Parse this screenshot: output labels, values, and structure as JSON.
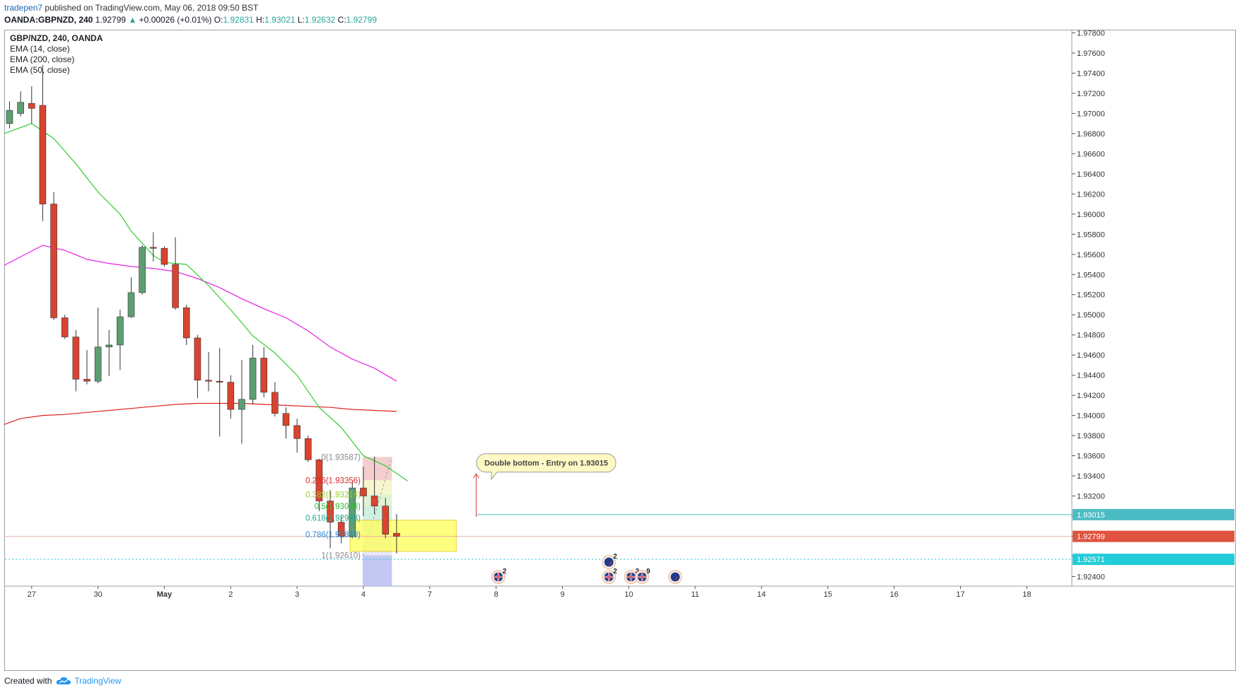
{
  "header": {
    "author": "tradepen7",
    "published": "published on TradingView.com, May 06, 2018 09:50 BST"
  },
  "quote": {
    "symbol": "OANDA:GBPNZD, 240",
    "last": "1.92799",
    "change": "+0.00026 (+0.01%)",
    "o_label": "O:",
    "o": "1.92831",
    "h_label": "H:",
    "h": "1.93021",
    "l_label": "L:",
    "l": "1.92632",
    "c_label": "C:",
    "c": "1.92799"
  },
  "legend": {
    "symbol": "GBP/NZD, 240, OANDA",
    "ema14": "EMA (14, close)",
    "ema200": "EMA (200, close)",
    "ema50": "EMA (50, close)"
  },
  "footer": {
    "created_with": "Created with",
    "brand": "TradingView"
  },
  "colors": {
    "up": "#5d9e72",
    "down": "#d9432f",
    "ema14": "#33cc33",
    "ema50": "#e61ee6",
    "ema200": "#e02020",
    "entry": "#4cbcc4",
    "support": "#22ccd8",
    "last": "#e0533f"
  },
  "chart_data": {
    "type": "candlestick",
    "ylim": [
      1.923,
      1.979
    ],
    "y_ticks": [
      "1.97800",
      "1.97600",
      "1.97400",
      "1.97200",
      "1.97000",
      "1.96800",
      "1.96600",
      "1.96400",
      "1.96200",
      "1.96000",
      "1.95800",
      "1.95600",
      "1.95400",
      "1.95200",
      "1.95000",
      "1.94800",
      "1.94600",
      "1.94400",
      "1.94200",
      "1.94000",
      "1.93800",
      "1.93600",
      "1.93400",
      "1.93200",
      "1.93000",
      "1.92800",
      "1.92600",
      "1.92400"
    ],
    "x_ticks": [
      {
        "label": "27",
        "bar": 2
      },
      {
        "label": "30",
        "bar": 8
      },
      {
        "label": "May",
        "bar": 14
      },
      {
        "label": "2",
        "bar": 20
      },
      {
        "label": "3",
        "bar": 26
      },
      {
        "label": "4",
        "bar": 32
      },
      {
        "label": "7",
        "bar": 38
      },
      {
        "label": "8",
        "bar": 44
      },
      {
        "label": "9",
        "bar": 50
      },
      {
        "label": "10",
        "bar": 56
      },
      {
        "label": "11",
        "bar": 62
      },
      {
        "label": "14",
        "bar": 68
      },
      {
        "label": "15",
        "bar": 74
      },
      {
        "label": "16",
        "bar": 80
      },
      {
        "label": "17",
        "bar": 86
      },
      {
        "label": "18",
        "bar": 92
      }
    ],
    "candles": [
      [
        1.969,
        1.9703,
        1.9685,
        1.9712
      ],
      [
        1.97,
        1.9711,
        1.9697,
        1.9722
      ],
      [
        1.971,
        1.9705,
        1.969,
        1.9727
      ],
      [
        1.9708,
        1.961,
        1.9593,
        1.9748
      ],
      [
        1.961,
        1.9497,
        1.9495,
        1.9622
      ],
      [
        1.9497,
        1.9478,
        1.9476,
        1.95
      ],
      [
        1.9478,
        1.9436,
        1.9424,
        1.9485
      ],
      [
        1.9436,
        1.9434,
        1.9431,
        1.9465
      ],
      [
        1.9434,
        1.9468,
        1.9432,
        1.9507
      ],
      [
        1.9468,
        1.947,
        1.9439,
        1.9485
      ],
      [
        1.947,
        1.9498,
        1.9445,
        1.9505
      ],
      [
        1.9498,
        1.9522,
        1.9497,
        1.9537
      ],
      [
        1.9522,
        1.9567,
        1.952,
        1.9569
      ],
      [
        1.9567,
        1.9566,
        1.9553,
        1.9582
      ],
      [
        1.9566,
        1.955,
        1.9548,
        1.9568
      ],
      [
        1.955,
        1.9507,
        1.9505,
        1.9577
      ],
      [
        1.9507,
        1.9477,
        1.947,
        1.951
      ],
      [
        1.9477,
        1.9435,
        1.9417,
        1.948
      ],
      [
        1.9435,
        1.9434,
        1.9424,
        1.9463
      ],
      [
        1.9434,
        1.9433,
        1.9379,
        1.9467
      ],
      [
        1.9433,
        1.9406,
        1.9397,
        1.944
      ],
      [
        1.9406,
        1.9416,
        1.9372,
        1.9455
      ],
      [
        1.9416,
        1.9457,
        1.9411,
        1.947
      ],
      [
        1.9457,
        1.9423,
        1.9418,
        1.9468
      ],
      [
        1.9423,
        1.9402,
        1.9399,
        1.9433
      ],
      [
        1.9402,
        1.939,
        1.9377,
        1.9408
      ],
      [
        1.939,
        1.9377,
        1.9363,
        1.9397
      ],
      [
        1.9377,
        1.9356,
        1.9354,
        1.938
      ],
      [
        1.9356,
        1.9315,
        1.9305,
        1.9357
      ],
      [
        1.9315,
        1.9294,
        1.9268,
        1.9326
      ],
      [
        1.9294,
        1.928,
        1.9273,
        1.93
      ],
      [
        1.928,
        1.9328,
        1.9278,
        1.9335
      ],
      [
        1.9328,
        1.932,
        1.93,
        1.9349
      ],
      [
        1.932,
        1.931,
        1.9302,
        1.9359
      ],
      [
        1.931,
        1.9282,
        1.9278,
        1.9318
      ],
      [
        1.9283,
        1.928,
        1.9263,
        1.9302
      ]
    ],
    "ema14": [
      [
        -0.5,
        1.968
      ],
      [
        2,
        1.969
      ],
      [
        4,
        1.9675
      ],
      [
        6,
        1.965
      ],
      [
        8,
        1.9622
      ],
      [
        10,
        1.96
      ],
      [
        11,
        1.9583
      ],
      [
        13,
        1.9559
      ],
      [
        14,
        1.9552
      ],
      [
        16,
        1.955
      ],
      [
        18,
        1.9529
      ],
      [
        20,
        1.9505
      ],
      [
        22,
        1.9479
      ],
      [
        24,
        1.9462
      ],
      [
        26,
        1.944
      ],
      [
        28,
        1.9408
      ],
      [
        30,
        1.9388
      ],
      [
        32,
        1.936
      ],
      [
        34,
        1.935
      ],
      [
        36,
        1.9335
      ]
    ],
    "ema50": [
      [
        -0.5,
        1.9549
      ],
      [
        3,
        1.9569
      ],
      [
        5,
        1.9564
      ],
      [
        7,
        1.9555
      ],
      [
        9,
        1.9551
      ],
      [
        11,
        1.9548
      ],
      [
        13,
        1.9546
      ],
      [
        15,
        1.9543
      ],
      [
        17,
        1.9536
      ],
      [
        19,
        1.9527
      ],
      [
        21,
        1.9516
      ],
      [
        23,
        1.9506
      ],
      [
        25,
        1.9497
      ],
      [
        27,
        1.9484
      ],
      [
        29,
        1.9468
      ],
      [
        31,
        1.9456
      ],
      [
        33,
        1.9447
      ],
      [
        35,
        1.9434
      ]
    ],
    "ema200": [
      [
        -0.5,
        1.9391
      ],
      [
        1,
        1.9397
      ],
      [
        3,
        1.94
      ],
      [
        5,
        1.9401
      ],
      [
        7,
        1.9403
      ],
      [
        9,
        1.9405
      ],
      [
        11,
        1.9407
      ],
      [
        13,
        1.9409
      ],
      [
        15,
        1.9411
      ],
      [
        17,
        1.9412
      ],
      [
        19,
        1.9412
      ],
      [
        21,
        1.9412
      ],
      [
        23,
        1.9411
      ],
      [
        25,
        1.941
      ],
      [
        27,
        1.9409
      ],
      [
        29,
        1.9408
      ],
      [
        31,
        1.9406
      ],
      [
        33,
        1.9405
      ],
      [
        35,
        1.9404
      ]
    ],
    "fib": {
      "levels": [
        {
          "label": "0(1.93587)",
          "value": 1.93587,
          "color": "#888888"
        },
        {
          "label": "0.236(1.93356)",
          "value": 1.93356,
          "color": "#d92a2a"
        },
        {
          "label": "0.382(1.93214)",
          "value": 1.93214,
          "color": "#9acd32"
        },
        {
          "label": "0.5(1.93098)",
          "value": 1.93098,
          "color": "#33bb33"
        },
        {
          "label": "0.618(1.92983)",
          "value": 1.92983,
          "color": "#22aa88"
        },
        {
          "label": "0.786(1.92819)",
          "value": 1.92819,
          "color": "#2b8ad6"
        },
        {
          "label": "1(1.92610)",
          "value": 1.9261,
          "color": "#888888"
        }
      ]
    },
    "zone": {
      "top": 1.9296,
      "bottom": 1.9265
    },
    "entry_line": {
      "value": 1.93015,
      "label": "1.93015"
    },
    "last_price": {
      "value": 1.92799,
      "label": "1.92799"
    },
    "support_line": {
      "value": 1.92571,
      "label": "1.92571"
    },
    "annotation": {
      "text": "Double bottom - Entry on 1.93015"
    },
    "events": [
      {
        "bar": 44.2,
        "flag": "uk",
        "count": "2",
        "row": 1
      },
      {
        "bar": 54.2,
        "flag": "nz",
        "count": "2",
        "row": 0
      },
      {
        "bar": 54.2,
        "flag": "uk",
        "count": "2",
        "row": 1
      },
      {
        "bar": 56.2,
        "flag": "uk",
        "count": "2",
        "row": 1
      },
      {
        "bar": 57.2,
        "flag": "uk",
        "count": "9",
        "row": 1
      },
      {
        "bar": 60.2,
        "flag": "nz",
        "count": "",
        "row": 1
      }
    ]
  }
}
